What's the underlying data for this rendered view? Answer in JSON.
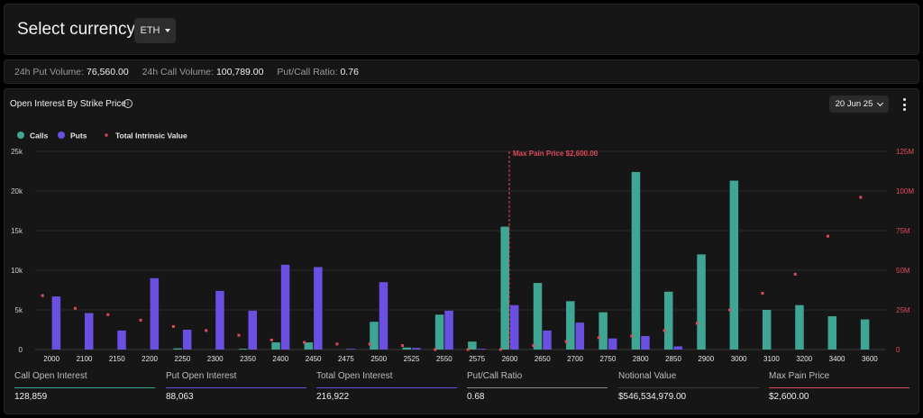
{
  "header": {
    "select_label": "Select currency:",
    "currency": "ETH"
  },
  "stats": {
    "put_volume_label": "24h Put Volume:",
    "put_volume": "76,560.00",
    "call_volume_label": "24h Call Volume:",
    "call_volume": "100,789.00",
    "ratio_label": "Put/Call Ratio:",
    "ratio": "0.76"
  },
  "panel": {
    "title": "Open Interest By Strike Price",
    "expiry": "20 Jun 25"
  },
  "legend": [
    {
      "name": "Calls",
      "color": "#3fa693"
    },
    {
      "name": "Puts",
      "color": "#6b4fe0"
    },
    {
      "name": "Total Intrinsic Value",
      "color": "#e04a5a"
    }
  ],
  "chart_data": {
    "type": "bar",
    "categories": [
      "2000",
      "2100",
      "2150",
      "2200",
      "2250",
      "2300",
      "2350",
      "2400",
      "2450",
      "2475",
      "2500",
      "2525",
      "2550",
      "2575",
      "2600",
      "2650",
      "2700",
      "2750",
      "2800",
      "2850",
      "2900",
      "3000",
      "3100",
      "3200",
      "3400",
      "3600"
    ],
    "series": [
      {
        "name": "Calls",
        "color": "#3fa693",
        "values": [
          0,
          0,
          0,
          0,
          150,
          0,
          100,
          900,
          900,
          0,
          3500,
          250,
          4400,
          1000,
          15500,
          8400,
          6100,
          4700,
          22400,
          7300,
          12000,
          21300,
          5000,
          5600,
          4200,
          3800
        ]
      },
      {
        "name": "Puts",
        "color": "#6b4fe0",
        "values": [
          6700,
          4600,
          2400,
          9000,
          2500,
          7400,
          4900,
          10700,
          10400,
          100,
          8500,
          200,
          4900,
          100,
          5600,
          2400,
          3400,
          1400,
          1700,
          400,
          0,
          0,
          0,
          0,
          0,
          0
        ]
      },
      {
        "name": "Total Intrinsic Value",
        "type": "scatter",
        "color": "#e04a5a",
        "axis": "right",
        "values": [
          34000000,
          26000000,
          22000000,
          18500000,
          14500000,
          12000000,
          9000000,
          6000000,
          4500000,
          3500000,
          3500000,
          2500000,
          0,
          0,
          0,
          2500000,
          5000000,
          7500000,
          8500000,
          12000000,
          16500000,
          25000000,
          35500000,
          47500000,
          71500000,
          96000000
        ]
      }
    ],
    "y_left": {
      "ylim": [
        0,
        25000
      ],
      "ticks": [
        0,
        5000,
        10000,
        15000,
        20000,
        25000
      ],
      "tick_labels": [
        "0",
        "5k",
        "10k",
        "15k",
        "20k",
        "25k"
      ]
    },
    "y_right": {
      "ylim": [
        0,
        125000000
      ],
      "ticks": [
        0,
        25000000,
        50000000,
        75000000,
        100000000,
        125000000
      ],
      "tick_labels": [
        "0",
        "25M",
        "50M",
        "75M",
        "100M",
        "125M"
      ]
    },
    "max_pain": {
      "strike": "2600",
      "label": "Max Pain Price $2,600.00"
    },
    "grid": true,
    "legend_position": "top-left"
  },
  "summary": [
    {
      "label": "Call Open Interest",
      "value": "128,859",
      "color": "#3fa693"
    },
    {
      "label": "Put Open Interest",
      "value": "88,063",
      "color": "#6b4fe0"
    },
    {
      "label": "Total Open Interest",
      "value": "216,922",
      "color": "#6b4fe0"
    },
    {
      "label": "Put/Call Ratio",
      "value": "0.68",
      "color": "#8a8a8a"
    },
    {
      "label": "Notional Value",
      "value": "$546,534,979.00",
      "color": "#3a3a3a"
    },
    {
      "label": "Max Pain Price",
      "value": "$2,600.00",
      "color": "#e04a5a"
    }
  ]
}
